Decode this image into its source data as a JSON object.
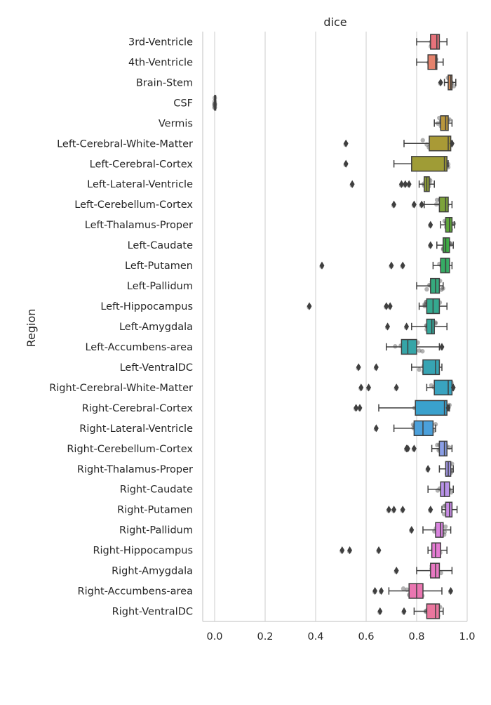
{
  "chart_data": {
    "type": "box",
    "title": "dice",
    "xlabel": "",
    "ylabel": "Region",
    "xlim": [
      -0.05,
      1.0
    ],
    "xticks": [
      0.0,
      0.2,
      0.4,
      0.6,
      0.8,
      1.0
    ],
    "xtick_labels": [
      "0.0",
      "0.2",
      "0.4",
      "0.6",
      "0.8",
      "1.0"
    ],
    "grid": "x",
    "series": [
      {
        "label": "3rd-Ventricle",
        "color": "#e8727b",
        "q1": 0.855,
        "median": 0.88,
        "q3": 0.89,
        "whislo": 0.8,
        "whishi": 0.92,
        "fliers": []
      },
      {
        "label": "4th-Ventricle",
        "color": "#e4826c",
        "q1": 0.845,
        "median": 0.875,
        "q3": 0.88,
        "whislo": 0.8,
        "whishi": 0.905,
        "fliers": []
      },
      {
        "label": "Brain-Stem",
        "color": "#d48e5a",
        "q1": 0.925,
        "median": 0.935,
        "q3": 0.94,
        "whislo": 0.91,
        "whishi": 0.955,
        "fliers": [
          0.895
        ]
      },
      {
        "label": "CSF",
        "color": "#c59a4b",
        "q1": 0.0,
        "median": 0.0,
        "q3": 0.001,
        "whislo": 0.0,
        "whishi": 0.002,
        "fliers": []
      },
      {
        "label": "Vermis",
        "color": "#b9963d",
        "q1": 0.895,
        "median": 0.915,
        "q3": 0.925,
        "whislo": 0.87,
        "whishi": 0.94,
        "fliers": []
      },
      {
        "label": "Left-Cerebral-White-Matter",
        "color": "#a99a36",
        "q1": 0.85,
        "median": 0.925,
        "q3": 0.935,
        "whislo": 0.75,
        "whishi": 0.94,
        "fliers": [
          0.52,
          0.94
        ]
      },
      {
        "label": "Left-Cerebral-Cortex",
        "color": "#9f9c36",
        "q1": 0.78,
        "median": 0.91,
        "q3": 0.92,
        "whislo": 0.71,
        "whishi": 0.925,
        "fliers": [
          0.52
        ]
      },
      {
        "label": "Left-Lateral-Ventricle",
        "color": "#8f9f38",
        "q1": 0.83,
        "median": 0.84,
        "q3": 0.85,
        "whislo": 0.81,
        "whishi": 0.87,
        "fliers": [
          0.545,
          0.74,
          0.755,
          0.77
        ]
      },
      {
        "label": "Left-Cerebellum-Cortex",
        "color": "#7da33a",
        "q1": 0.89,
        "median": 0.915,
        "q3": 0.925,
        "whislo": 0.83,
        "whishi": 0.94,
        "fliers": [
          0.71,
          0.79,
          0.82
        ]
      },
      {
        "label": "Left-Thalamus-Proper",
        "color": "#5fa83b",
        "q1": 0.915,
        "median": 0.93,
        "q3": 0.94,
        "whislo": 0.895,
        "whishi": 0.95,
        "fliers": [
          0.855
        ]
      },
      {
        "label": "Left-Caudate",
        "color": "#3ead45",
        "q1": 0.905,
        "median": 0.915,
        "q3": 0.93,
        "whislo": 0.88,
        "whishi": 0.945,
        "fliers": [
          0.855
        ]
      },
      {
        "label": "Left-Putamen",
        "color": "#37ac65",
        "q1": 0.895,
        "median": 0.915,
        "q3": 0.93,
        "whislo": 0.865,
        "whishi": 0.94,
        "fliers": [
          0.425,
          0.7,
          0.745
        ]
      },
      {
        "label": "Left-Pallidum",
        "color": "#36aa7e",
        "q1": 0.855,
        "median": 0.875,
        "q3": 0.89,
        "whislo": 0.8,
        "whishi": 0.905,
        "fliers": []
      },
      {
        "label": "Left-Hippocampus",
        "color": "#35a98f",
        "q1": 0.84,
        "median": 0.865,
        "q3": 0.89,
        "whislo": 0.81,
        "whishi": 0.92,
        "fliers": [
          0.375,
          0.68,
          0.695
        ]
      },
      {
        "label": "Left-Amygdala",
        "color": "#35a79b",
        "q1": 0.84,
        "median": 0.86,
        "q3": 0.87,
        "whislo": 0.78,
        "whishi": 0.92,
        "fliers": [
          0.685,
          0.76
        ]
      },
      {
        "label": "Left-Accumbens-area",
        "color": "#36a5a7",
        "q1": 0.74,
        "median": 0.765,
        "q3": 0.8,
        "whislo": 0.68,
        "whishi": 0.89,
        "fliers": [
          0.9
        ]
      },
      {
        "label": "Left-VentralDC",
        "color": "#37a4b3",
        "q1": 0.825,
        "median": 0.875,
        "q3": 0.89,
        "whislo": 0.78,
        "whishi": 0.9,
        "fliers": [
          0.57,
          0.64
        ]
      },
      {
        "label": "Right-Cerebral-White-Matter",
        "color": "#39a3c0",
        "q1": 0.87,
        "median": 0.925,
        "q3": 0.94,
        "whislo": 0.84,
        "whishi": 0.945,
        "fliers": [
          0.58,
          0.61,
          0.72,
          0.945
        ]
      },
      {
        "label": "Right-Cerebral-Cortex",
        "color": "#3aa1cd",
        "q1": 0.795,
        "median": 0.91,
        "q3": 0.92,
        "whislo": 0.65,
        "whishi": 0.93,
        "fliers": [
          0.56,
          0.575,
          0.925
        ]
      },
      {
        "label": "Right-Lateral-Ventricle",
        "color": "#4ba0db",
        "q1": 0.79,
        "median": 0.825,
        "q3": 0.865,
        "whislo": 0.71,
        "whishi": 0.875,
        "fliers": [
          0.64
        ]
      },
      {
        "label": "Right-Cerebellum-Cortex",
        "color": "#8a9ee6",
        "q1": 0.89,
        "median": 0.91,
        "q3": 0.92,
        "whislo": 0.86,
        "whishi": 0.94,
        "fliers": [
          0.76,
          0.765,
          0.79
        ]
      },
      {
        "label": "Right-Thalamus-Proper",
        "color": "#a497e8",
        "q1": 0.915,
        "median": 0.925,
        "q3": 0.935,
        "whislo": 0.89,
        "whishi": 0.945,
        "fliers": [
          0.845
        ]
      },
      {
        "label": "Right-Caudate",
        "color": "#b892e8",
        "q1": 0.895,
        "median": 0.91,
        "q3": 0.93,
        "whislo": 0.845,
        "whishi": 0.945,
        "fliers": []
      },
      {
        "label": "Right-Putamen",
        "color": "#c98ae6",
        "q1": 0.915,
        "median": 0.93,
        "q3": 0.94,
        "whislo": 0.9,
        "whishi": 0.96,
        "fliers": [
          0.69,
          0.71,
          0.745,
          0.855
        ]
      },
      {
        "label": "Right-Pallidum",
        "color": "#da84e0",
        "q1": 0.875,
        "median": 0.895,
        "q3": 0.905,
        "whislo": 0.825,
        "whishi": 0.935,
        "fliers": [
          0.78
        ]
      },
      {
        "label": "Right-Hippocampus",
        "color": "#e47bd2",
        "q1": 0.86,
        "median": 0.875,
        "q3": 0.895,
        "whislo": 0.845,
        "whishi": 0.92,
        "fliers": [
          0.505,
          0.535,
          0.65
        ]
      },
      {
        "label": "Right-Amygdala",
        "color": "#e878c2",
        "q1": 0.855,
        "median": 0.875,
        "q3": 0.89,
        "whislo": 0.8,
        "whishi": 0.94,
        "fliers": [
          0.72
        ]
      },
      {
        "label": "Right-Accumbens-area",
        "color": "#ea76b1",
        "q1": 0.77,
        "median": 0.8,
        "q3": 0.825,
        "whislo": 0.69,
        "whishi": 0.9,
        "fliers": [
          0.635,
          0.66,
          0.935
        ]
      },
      {
        "label": "Right-VentralDC",
        "color": "#ea769e",
        "q1": 0.84,
        "median": 0.875,
        "q3": 0.89,
        "whislo": 0.79,
        "whishi": 0.905,
        "fliers": [
          0.655,
          0.75
        ]
      }
    ]
  }
}
